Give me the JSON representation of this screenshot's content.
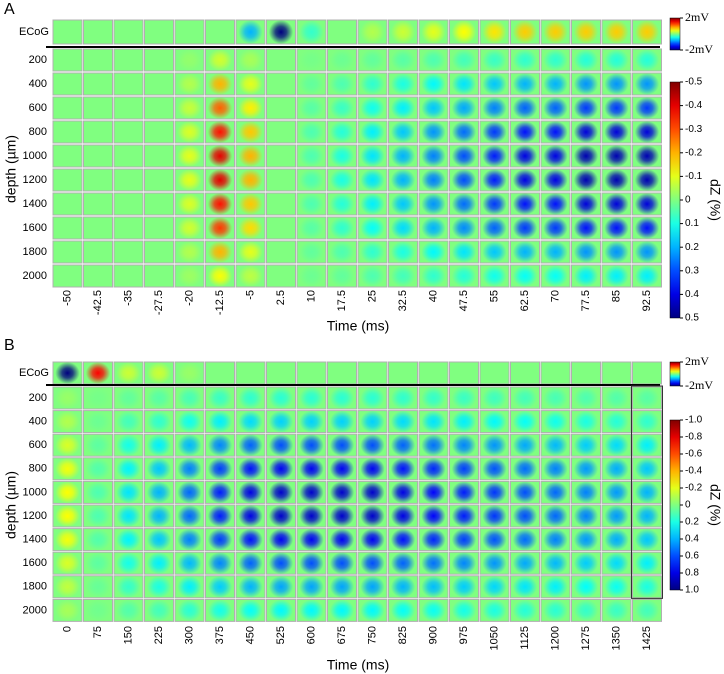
{
  "panels": [
    {
      "label": "A",
      "ecog_label": "ECoG",
      "y_axis_label": "depth (µm)",
      "x_axis_label": "Time (ms)",
      "times": [
        -50,
        -42.5,
        -35,
        -27.5,
        -20,
        -12.5,
        -5,
        2.5,
        10,
        17.5,
        25,
        32.5,
        40,
        47.5,
        55,
        62.5,
        70,
        77.5,
        85,
        92.5
      ],
      "depths": [
        200,
        400,
        600,
        800,
        1000,
        1200,
        1400,
        1600,
        1800,
        2000
      ],
      "ecog": {
        "values": [
          0,
          0,
          0,
          0,
          0,
          0,
          -0.8,
          -2,
          -0.3,
          0,
          0.2,
          0.3,
          0.4,
          0.5,
          0.6,
          0.7,
          0.7,
          0.7,
          0.7,
          0.7
        ],
        "lim": [
          -2,
          2
        ],
        "ticks": [
          {
            "value": 2,
            "label": "2mV"
          },
          {
            "value": -2,
            "label": "-2mV"
          }
        ]
      },
      "dz": {
        "label": "dZ (%)",
        "lim": [
          -0.5,
          0.5
        ],
        "ticks": [
          -0.5,
          -0.4,
          -0.3,
          -0.2,
          -0.1,
          0,
          0.1,
          0.2,
          0.3,
          0.4,
          0.5
        ],
        "values": [
          [
            0,
            0,
            0,
            0,
            -0.02,
            -0.08,
            -0.04,
            0,
            0.01,
            0.02,
            0.03,
            0.04,
            0.05,
            0.06,
            0.07,
            0.08,
            0.08,
            0.09,
            0.09,
            0.09
          ],
          [
            0,
            0,
            0,
            0,
            -0.05,
            -0.2,
            -0.1,
            0,
            0.03,
            0.05,
            0.08,
            0.1,
            0.13,
            0.15,
            0.18,
            0.2,
            0.2,
            0.23,
            0.23,
            0.23
          ],
          [
            0,
            0,
            0,
            0,
            -0.07,
            -0.28,
            -0.14,
            0,
            0.04,
            0.07,
            0.11,
            0.14,
            0.18,
            0.21,
            0.25,
            0.28,
            0.28,
            0.32,
            0.32,
            0.32
          ],
          [
            0,
            0,
            0,
            0,
            -0.09,
            -0.36,
            -0.18,
            0,
            0.05,
            0.09,
            0.14,
            0.18,
            0.23,
            0.27,
            0.32,
            0.36,
            0.36,
            0.41,
            0.41,
            0.41
          ],
          [
            0,
            0,
            0,
            0,
            -0.1,
            -0.4,
            -0.2,
            0,
            0.05,
            0.1,
            0.15,
            0.2,
            0.25,
            0.3,
            0.35,
            0.4,
            0.4,
            0.45,
            0.45,
            0.45
          ],
          [
            0,
            0,
            0,
            0,
            -0.1,
            -0.4,
            -0.2,
            0,
            0.05,
            0.1,
            0.15,
            0.2,
            0.25,
            0.3,
            0.35,
            0.4,
            0.4,
            0.45,
            0.45,
            0.45
          ],
          [
            0,
            0,
            0,
            0,
            -0.09,
            -0.36,
            -0.18,
            0,
            0.05,
            0.09,
            0.14,
            0.18,
            0.23,
            0.27,
            0.32,
            0.36,
            0.36,
            0.41,
            0.41,
            0.41
          ],
          [
            0,
            0,
            0,
            0,
            -0.08,
            -0.32,
            -0.16,
            0,
            0.04,
            0.08,
            0.12,
            0.16,
            0.2,
            0.24,
            0.28,
            0.32,
            0.32,
            0.36,
            0.36,
            0.36
          ],
          [
            0,
            0,
            0,
            0,
            -0.05,
            -0.2,
            -0.1,
            0,
            0.03,
            0.05,
            0.08,
            0.1,
            0.13,
            0.15,
            0.18,
            0.2,
            0.2,
            0.23,
            0.23,
            0.23
          ],
          [
            0,
            0,
            0,
            0,
            -0.03,
            -0.12,
            -0.06,
            0,
            0.02,
            0.03,
            0.05,
            0.06,
            0.08,
            0.09,
            0.11,
            0.12,
            0.12,
            0.14,
            0.14,
            0.14
          ]
        ]
      }
    },
    {
      "label": "B",
      "ecog_label": "ECoG",
      "y_axis_label": "depth (µm)",
      "x_axis_label": "Time (ms)",
      "times": [
        0,
        75,
        150,
        225,
        300,
        375,
        450,
        525,
        600,
        675,
        750,
        825,
        900,
        975,
        1050,
        1125,
        1200,
        1275,
        1350,
        1425
      ],
      "depths": [
        200,
        400,
        600,
        800,
        1000,
        1200,
        1400,
        1600,
        1800,
        2000
      ],
      "ecog": {
        "values": [
          -2,
          1.5,
          0.3,
          0.3,
          0.1,
          0,
          0,
          0,
          0,
          0,
          0,
          0,
          0,
          0,
          0,
          0,
          0,
          0,
          0,
          0
        ],
        "lim": [
          -2,
          2
        ],
        "ticks": [
          {
            "value": 2,
            "label": "2mV"
          },
          {
            "value": -2,
            "label": "-2mV"
          }
        ]
      },
      "dz": {
        "label": "dZ (%)",
        "lim": [
          -1,
          1
        ],
        "ticks": [
          {
            "value": -1,
            "label": "-1.0"
          },
          -0.8,
          -0.6,
          -0.4,
          -0.2,
          0,
          0.2,
          0.4,
          0.6,
          0.8,
          {
            "value": 1,
            "label": "1.0"
          }
        ],
        "values": [
          [
            -0.05,
            0.02,
            0.06,
            0.08,
            0.11,
            0.14,
            0.16,
            0.17,
            0.17,
            0.17,
            0.17,
            0.16,
            0.15,
            0.14,
            0.13,
            0.12,
            0.11,
            0.1,
            0.09,
            0.08
          ],
          [
            -0.1,
            0.04,
            0.12,
            0.16,
            0.22,
            0.28,
            0.32,
            0.34,
            0.34,
            0.34,
            0.34,
            0.32,
            0.3,
            0.28,
            0.26,
            0.24,
            0.22,
            0.2,
            0.18,
            0.16
          ],
          [
            -0.18,
            0.07,
            0.21,
            0.28,
            0.39,
            0.49,
            0.56,
            0.6,
            0.6,
            0.6,
            0.6,
            0.56,
            0.53,
            0.49,
            0.46,
            0.42,
            0.39,
            0.35,
            0.32,
            0.28
          ],
          [
            -0.23,
            0.09,
            0.27,
            0.36,
            0.5,
            0.63,
            0.72,
            0.77,
            0.77,
            0.77,
            0.77,
            0.72,
            0.68,
            0.63,
            0.59,
            0.54,
            0.5,
            0.45,
            0.41,
            0.36
          ],
          [
            -0.25,
            0.1,
            0.3,
            0.4,
            0.55,
            0.7,
            0.8,
            0.85,
            0.85,
            0.85,
            0.85,
            0.8,
            0.75,
            0.7,
            0.65,
            0.6,
            0.55,
            0.5,
            0.45,
            0.4
          ],
          [
            -0.25,
            0.1,
            0.3,
            0.4,
            0.55,
            0.7,
            0.8,
            0.85,
            0.85,
            0.85,
            0.85,
            0.8,
            0.75,
            0.7,
            0.65,
            0.6,
            0.55,
            0.5,
            0.45,
            0.4
          ],
          [
            -0.23,
            0.09,
            0.27,
            0.36,
            0.5,
            0.63,
            0.72,
            0.77,
            0.77,
            0.77,
            0.77,
            0.72,
            0.68,
            0.63,
            0.59,
            0.54,
            0.5,
            0.45,
            0.41,
            0.36
          ],
          [
            -0.18,
            0.07,
            0.21,
            0.28,
            0.39,
            0.49,
            0.56,
            0.6,
            0.6,
            0.6,
            0.6,
            0.56,
            0.53,
            0.49,
            0.46,
            0.42,
            0.39,
            0.35,
            0.32,
            0.28
          ],
          [
            -0.13,
            0.05,
            0.15,
            0.2,
            0.28,
            0.35,
            0.4,
            0.43,
            0.43,
            0.43,
            0.43,
            0.4,
            0.38,
            0.35,
            0.33,
            0.3,
            0.28,
            0.25,
            0.23,
            0.2
          ],
          [
            -0.08,
            0.03,
            0.09,
            0.12,
            0.17,
            0.21,
            0.24,
            0.26,
            0.26,
            0.26,
            0.26,
            0.24,
            0.23,
            0.21,
            0.2,
            0.18,
            0.17,
            0.15,
            0.14,
            0.12
          ]
        ]
      }
    }
  ]
}
